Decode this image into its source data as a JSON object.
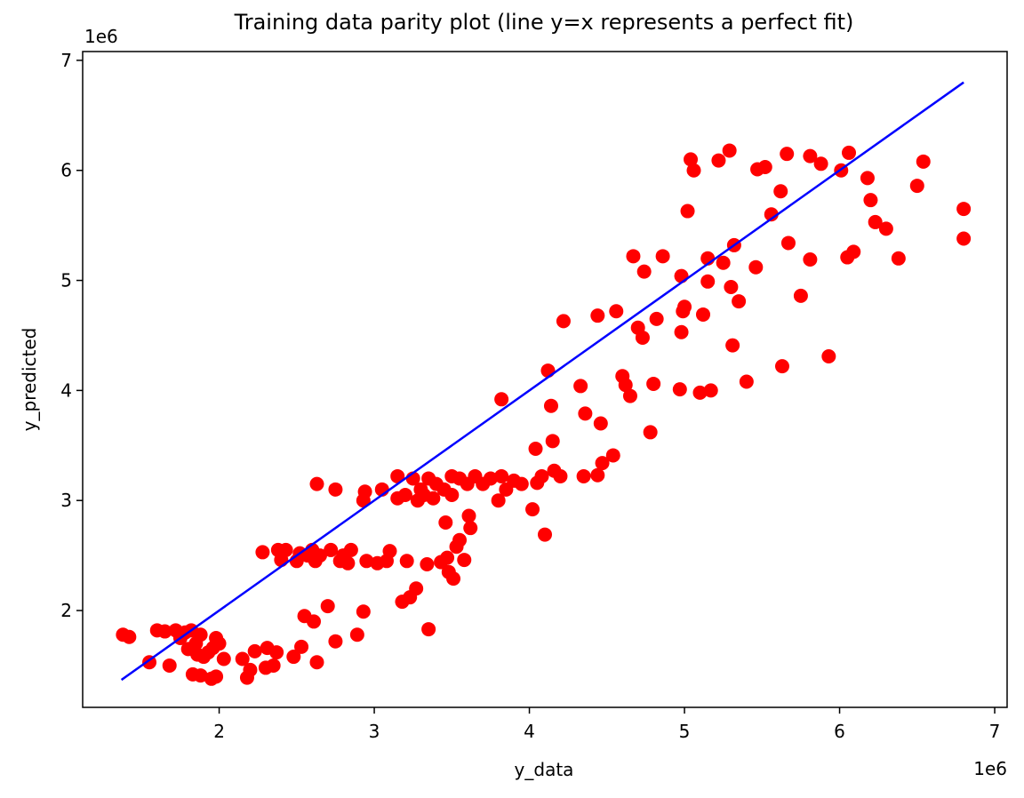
{
  "chart_data": {
    "type": "scatter",
    "title": "Training data parity plot (line y=x represents a perfect fit)",
    "xlabel": "y_data",
    "ylabel": "y_predicted",
    "x_offset_label": "1e6",
    "y_offset_label": "1e6",
    "xlim": [
      1.12,
      7.08
    ],
    "ylim": [
      1.12,
      7.08
    ],
    "xticks": [
      2,
      3,
      4,
      5,
      6,
      7
    ],
    "yticks": [
      2,
      3,
      4,
      5,
      6,
      7
    ],
    "series": [
      {
        "type": "scatter",
        "color": "#ff0000",
        "x": [
          1.38,
          1.42,
          1.55,
          1.6,
          1.65,
          1.68,
          1.72,
          1.75,
          1.78,
          1.8,
          1.82,
          1.83,
          1.85,
          1.86,
          1.88,
          1.88,
          1.9,
          1.93,
          1.95,
          1.96,
          1.98,
          1.98,
          2.0,
          2.03,
          2.15,
          2.18,
          2.2,
          2.23,
          2.28,
          2.3,
          2.31,
          2.35,
          2.37,
          2.38,
          2.4,
          2.43,
          2.48,
          2.5,
          2.52,
          2.53,
          2.55,
          2.57,
          2.6,
          2.61,
          2.62,
          2.63,
          2.63,
          2.65,
          2.7,
          2.72,
          2.75,
          2.75,
          2.78,
          2.8,
          2.83,
          2.85,
          2.89,
          2.93,
          2.93,
          2.94,
          2.95,
          3.02,
          3.05,
          3.08,
          3.1,
          3.15,
          3.15,
          3.18,
          3.2,
          3.21,
          3.23,
          3.25,
          3.27,
          3.28,
          3.3,
          3.32,
          3.34,
          3.35,
          3.35,
          3.38,
          3.4,
          3.43,
          3.45,
          3.46,
          3.47,
          3.48,
          3.5,
          3.5,
          3.51,
          3.53,
          3.55,
          3.55,
          3.58,
          3.6,
          3.61,
          3.62,
          3.65,
          3.7,
          3.75,
          3.8,
          3.82,
          3.82,
          3.85,
          3.9,
          3.95,
          4.02,
          4.04,
          4.05,
          4.08,
          4.1,
          4.12,
          4.14,
          4.15,
          4.16,
          4.2,
          4.22,
          4.33,
          4.35,
          4.36,
          4.44,
          4.44,
          4.46,
          4.47,
          4.54,
          4.56,
          4.6,
          4.62,
          4.65,
          4.67,
          4.7,
          4.73,
          4.74,
          4.78,
          4.8,
          4.82,
          4.86,
          4.97,
          4.98,
          4.98,
          4.99,
          5.0,
          5.02,
          5.04,
          5.06,
          5.1,
          5.12,
          5.15,
          5.15,
          5.17,
          5.22,
          5.25,
          5.29,
          5.3,
          5.31,
          5.32,
          5.35,
          5.4,
          5.46,
          5.47,
          5.52,
          5.56,
          5.62,
          5.63,
          5.66,
          5.67,
          5.75,
          5.81,
          5.81,
          5.88,
          5.93,
          6.01,
          6.05,
          6.06,
          6.09,
          6.18,
          6.2,
          6.23,
          6.3,
          6.38,
          6.5,
          6.54,
          6.8,
          6.8
        ],
        "values": [
          1.78,
          1.76,
          1.53,
          1.82,
          1.81,
          1.5,
          1.82,
          1.75,
          1.8,
          1.65,
          1.82,
          1.42,
          1.7,
          1.6,
          1.78,
          1.41,
          1.58,
          1.62,
          1.38,
          1.66,
          1.75,
          1.4,
          1.7,
          1.56,
          1.56,
          1.39,
          1.46,
          1.63,
          2.53,
          1.48,
          1.66,
          1.5,
          1.62,
          2.55,
          2.46,
          2.55,
          1.58,
          2.45,
          2.52,
          1.67,
          1.95,
          2.5,
          2.55,
          1.9,
          2.45,
          3.15,
          1.53,
          2.5,
          2.04,
          2.55,
          3.1,
          1.72,
          2.45,
          2.5,
          2.43,
          2.55,
          1.78,
          1.99,
          3.0,
          3.08,
          2.45,
          2.43,
          3.1,
          2.45,
          2.54,
          3.02,
          3.22,
          2.08,
          3.05,
          2.45,
          2.12,
          3.2,
          2.2,
          3.0,
          3.1,
          3.05,
          2.42,
          1.83,
          3.2,
          3.02,
          3.15,
          2.44,
          3.1,
          2.8,
          2.48,
          2.35,
          3.22,
          3.05,
          2.29,
          2.58,
          2.64,
          3.2,
          2.46,
          3.15,
          2.86,
          2.75,
          3.22,
          3.15,
          3.2,
          3.0,
          3.92,
          3.22,
          3.1,
          3.18,
          3.15,
          2.92,
          3.47,
          3.16,
          3.22,
          2.69,
          4.18,
          3.86,
          3.54,
          3.27,
          3.22,
          4.63,
          4.04,
          3.22,
          3.79,
          4.68,
          3.23,
          3.7,
          3.34,
          3.41,
          4.72,
          4.13,
          4.05,
          3.95,
          5.22,
          4.57,
          4.48,
          5.08,
          3.62,
          4.06,
          4.65,
          5.22,
          4.01,
          5.04,
          4.53,
          4.72,
          4.76,
          5.63,
          6.1,
          6.0,
          3.98,
          4.69,
          5.2,
          4.99,
          4.0,
          6.09,
          5.16,
          6.18,
          4.94,
          4.41,
          5.32,
          4.81,
          4.08,
          5.12,
          6.01,
          6.03,
          5.6,
          5.81,
          4.22,
          6.15,
          5.34,
          4.86,
          6.13,
          5.19,
          6.06,
          4.31,
          6.0,
          5.21,
          6.16,
          5.26,
          5.93,
          5.73,
          5.53,
          5.47,
          5.2,
          5.86,
          6.08,
          5.65,
          5.38
        ]
      },
      {
        "type": "line",
        "color": "#0000ff",
        "x": [
          1.37,
          6.8
        ],
        "values": [
          1.37,
          6.8
        ]
      }
    ]
  }
}
